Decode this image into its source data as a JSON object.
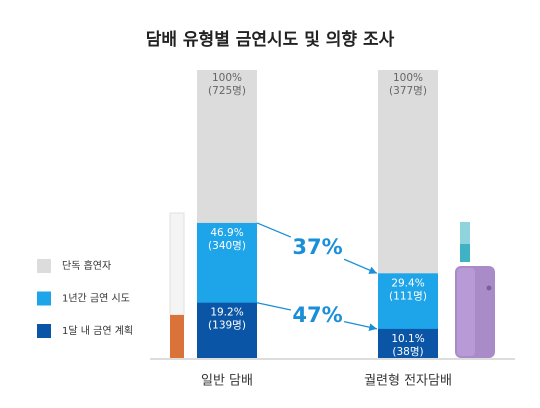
{
  "chart_data": {
    "type": "bar",
    "title": "담배 유형별 금연시도 및 의향 조사",
    "categories": [
      "일반 담배",
      "궐련형 전자담배"
    ],
    "ylim": [
      0,
      100
    ],
    "series": [
      {
        "name": "단독 흡연자",
        "color": "#dcdcdc",
        "values": [
          100,
          100
        ],
        "value_labels": [
          "100%",
          "100%"
        ],
        "count_labels": [
          "(725명)",
          "(377명)"
        ]
      },
      {
        "name": "1년간 금연 시도",
        "color": "#1ea4e9",
        "values": [
          46.9,
          29.4
        ],
        "value_labels": [
          "46.9%",
          "29.4%"
        ],
        "count_labels": [
          "(340명)",
          "(111명)"
        ]
      },
      {
        "name": "1달 내 금연 계획",
        "color": "#0a55a6",
        "values": [
          19.2,
          10.1
        ],
        "value_labels": [
          "19.2%",
          "10.1%"
        ],
        "count_labels": [
          "(139명)",
          "(38명)"
        ]
      }
    ],
    "annotations": [
      {
        "text": "37%"
      },
      {
        "text": "47%"
      }
    ]
  }
}
